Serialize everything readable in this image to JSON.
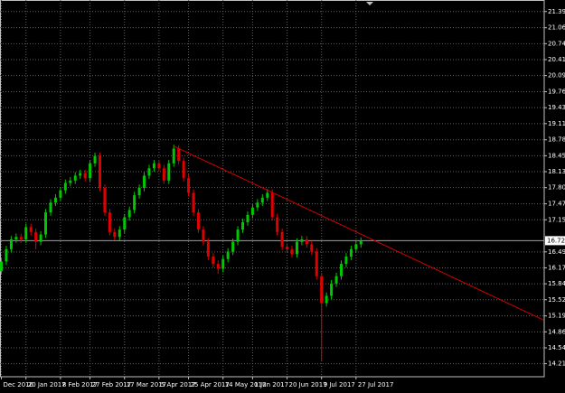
{
  "chart_data": {
    "type": "candlestick",
    "categories": [
      "Dec 2016",
      null,
      null,
      null,
      null,
      "20 Jan 2017",
      null,
      null,
      null,
      null,
      null,
      null,
      "8 Feb 2017",
      null,
      null,
      null,
      null,
      null,
      "27 Feb 2017",
      null,
      null,
      null,
      null,
      null,
      null,
      "17 Mar 2017",
      null,
      null,
      null,
      null,
      null,
      null,
      "5 Apr 2017",
      null,
      null,
      null,
      null,
      null,
      "25 Apr 2017",
      null,
      null,
      null,
      null,
      null,
      null,
      "14 May 2017",
      null,
      null,
      null,
      null,
      null,
      "1 Jun 2017",
      null,
      null,
      null,
      null,
      null,
      null,
      "20 Jun 2017",
      null,
      null,
      null,
      null,
      null,
      null,
      "9 Jul 2017",
      null,
      null,
      null,
      null,
      null,
      null,
      "27 Jul 2017",
      null
    ],
    "open": [
      16.1,
      16.3,
      16.55,
      16.75,
      16.8,
      16.75,
      17.0,
      16.9,
      16.7,
      16.85,
      17.3,
      17.5,
      17.6,
      17.75,
      17.9,
      17.95,
      18.05,
      18.1,
      18.0,
      18.3,
      18.45,
      17.8,
      17.3,
      16.9,
      16.8,
      16.95,
      17.2,
      17.35,
      17.65,
      17.8,
      18.05,
      18.2,
      18.3,
      18.2,
      17.95,
      18.3,
      18.6,
      18.35,
      18.0,
      17.7,
      17.3,
      16.95,
      16.7,
      16.4,
      16.25,
      16.15,
      16.35,
      16.5,
      16.7,
      16.95,
      17.1,
      17.25,
      17.4,
      17.5,
      17.6,
      17.7,
      17.2,
      16.9,
      16.6,
      16.55,
      16.45,
      16.7,
      16.75,
      16.65,
      16.5,
      16.0,
      15.45,
      15.6,
      15.85,
      16.0,
      16.25,
      16.4,
      16.55,
      16.65
    ],
    "high": [
      16.37,
      16.62,
      16.82,
      16.87,
      16.87,
      17.07,
      17.07,
      16.97,
      16.92,
      17.37,
      17.57,
      17.67,
      17.82,
      17.97,
      18.02,
      18.12,
      18.17,
      18.17,
      18.37,
      18.52,
      18.52,
      17.87,
      17.37,
      16.97,
      17.02,
      17.27,
      17.42,
      17.72,
      17.87,
      18.12,
      18.27,
      18.37,
      18.37,
      18.27,
      18.37,
      18.68,
      18.67,
      18.42,
      18.07,
      17.77,
      17.37,
      17.02,
      16.77,
      16.47,
      16.32,
      16.42,
      16.57,
      16.77,
      17.02,
      17.17,
      17.32,
      17.47,
      17.57,
      17.67,
      17.78,
      17.77,
      17.27,
      16.97,
      16.67,
      16.62,
      16.77,
      16.82,
      16.82,
      16.72,
      16.57,
      16.07,
      15.67,
      15.92,
      16.07,
      16.32,
      16.47,
      16.62,
      16.72,
      16.79
    ],
    "low": [
      16.03,
      16.23,
      16.48,
      16.68,
      16.68,
      16.68,
      16.83,
      16.55,
      16.63,
      16.78,
      17.23,
      17.43,
      17.53,
      17.68,
      17.83,
      17.88,
      17.98,
      17.93,
      17.93,
      18.23,
      17.73,
      17.23,
      16.83,
      16.73,
      16.73,
      16.88,
      17.13,
      17.28,
      17.58,
      17.73,
      17.98,
      18.13,
      18.13,
      17.88,
      17.88,
      18.23,
      18.28,
      17.93,
      17.63,
      17.23,
      16.88,
      16.63,
      16.33,
      16.18,
      16.05,
      16.08,
      16.28,
      16.43,
      16.63,
      16.88,
      17.03,
      17.18,
      17.33,
      17.43,
      17.53,
      17.13,
      16.83,
      16.53,
      16.48,
      16.38,
      16.38,
      16.63,
      16.58,
      16.43,
      15.93,
      14.28,
      15.38,
      15.53,
      15.78,
      15.93,
      16.18,
      16.33,
      16.48,
      16.58
    ],
    "close": [
      16.3,
      16.55,
      16.75,
      16.8,
      16.75,
      17.0,
      16.9,
      16.7,
      16.85,
      17.3,
      17.5,
      17.6,
      17.75,
      17.9,
      17.95,
      18.05,
      18.1,
      18.0,
      18.3,
      18.45,
      17.8,
      17.3,
      16.9,
      16.8,
      16.95,
      17.2,
      17.35,
      17.65,
      17.8,
      18.05,
      18.2,
      18.3,
      18.2,
      17.95,
      18.3,
      18.6,
      18.35,
      18.0,
      17.7,
      17.3,
      16.95,
      16.7,
      16.4,
      16.25,
      16.15,
      16.35,
      16.5,
      16.7,
      16.95,
      17.1,
      17.25,
      17.4,
      17.5,
      17.6,
      17.7,
      17.2,
      16.9,
      16.6,
      16.55,
      16.45,
      16.7,
      16.75,
      16.65,
      16.5,
      16.0,
      15.45,
      15.6,
      15.85,
      16.0,
      16.25,
      16.4,
      16.55,
      16.65,
      16.72
    ],
    "up_color": "#00c800",
    "down_color": "#e00000",
    "xlim": [
      -0.275,
      110.2
    ],
    "ylim": [
      13.95,
      21.63
    ],
    "yticks": [
      21.395,
      21.065,
      {
        "value": 20.74,
        "label": "20.740"
      },
      20.415,
      {
        "value": 20.09,
        "label": "20.090"
      },
      {
        "value": 19.76,
        "label": "19.760"
      },
      19.435,
      {
        "value": 19.11,
        "label": "19.110"
      },
      {
        "value": 18.78,
        "label": "18.780"
      },
      18.455,
      {
        "value": 18.13,
        "label": "18.130"
      },
      17.805,
      17.475,
      {
        "value": 17.15,
        "label": "17.150"
      },
      16.495,
      {
        "value": 16.17,
        "label": "16.170"
      },
      15.845,
      {
        "value": 15.52,
        "label": "15.520"
      },
      {
        "value": 15.19,
        "label": "15.190"
      },
      14.865,
      {
        "value": 14.54,
        "label": "14.540"
      },
      14.215
    ],
    "grid": true,
    "trendline": {
      "x": [
        35,
        110
      ],
      "values": [
        18.65,
        15.11
      ],
      "color": "#d00000"
    },
    "last_price": {
      "value": 16.724,
      "label": "16.724"
    }
  }
}
